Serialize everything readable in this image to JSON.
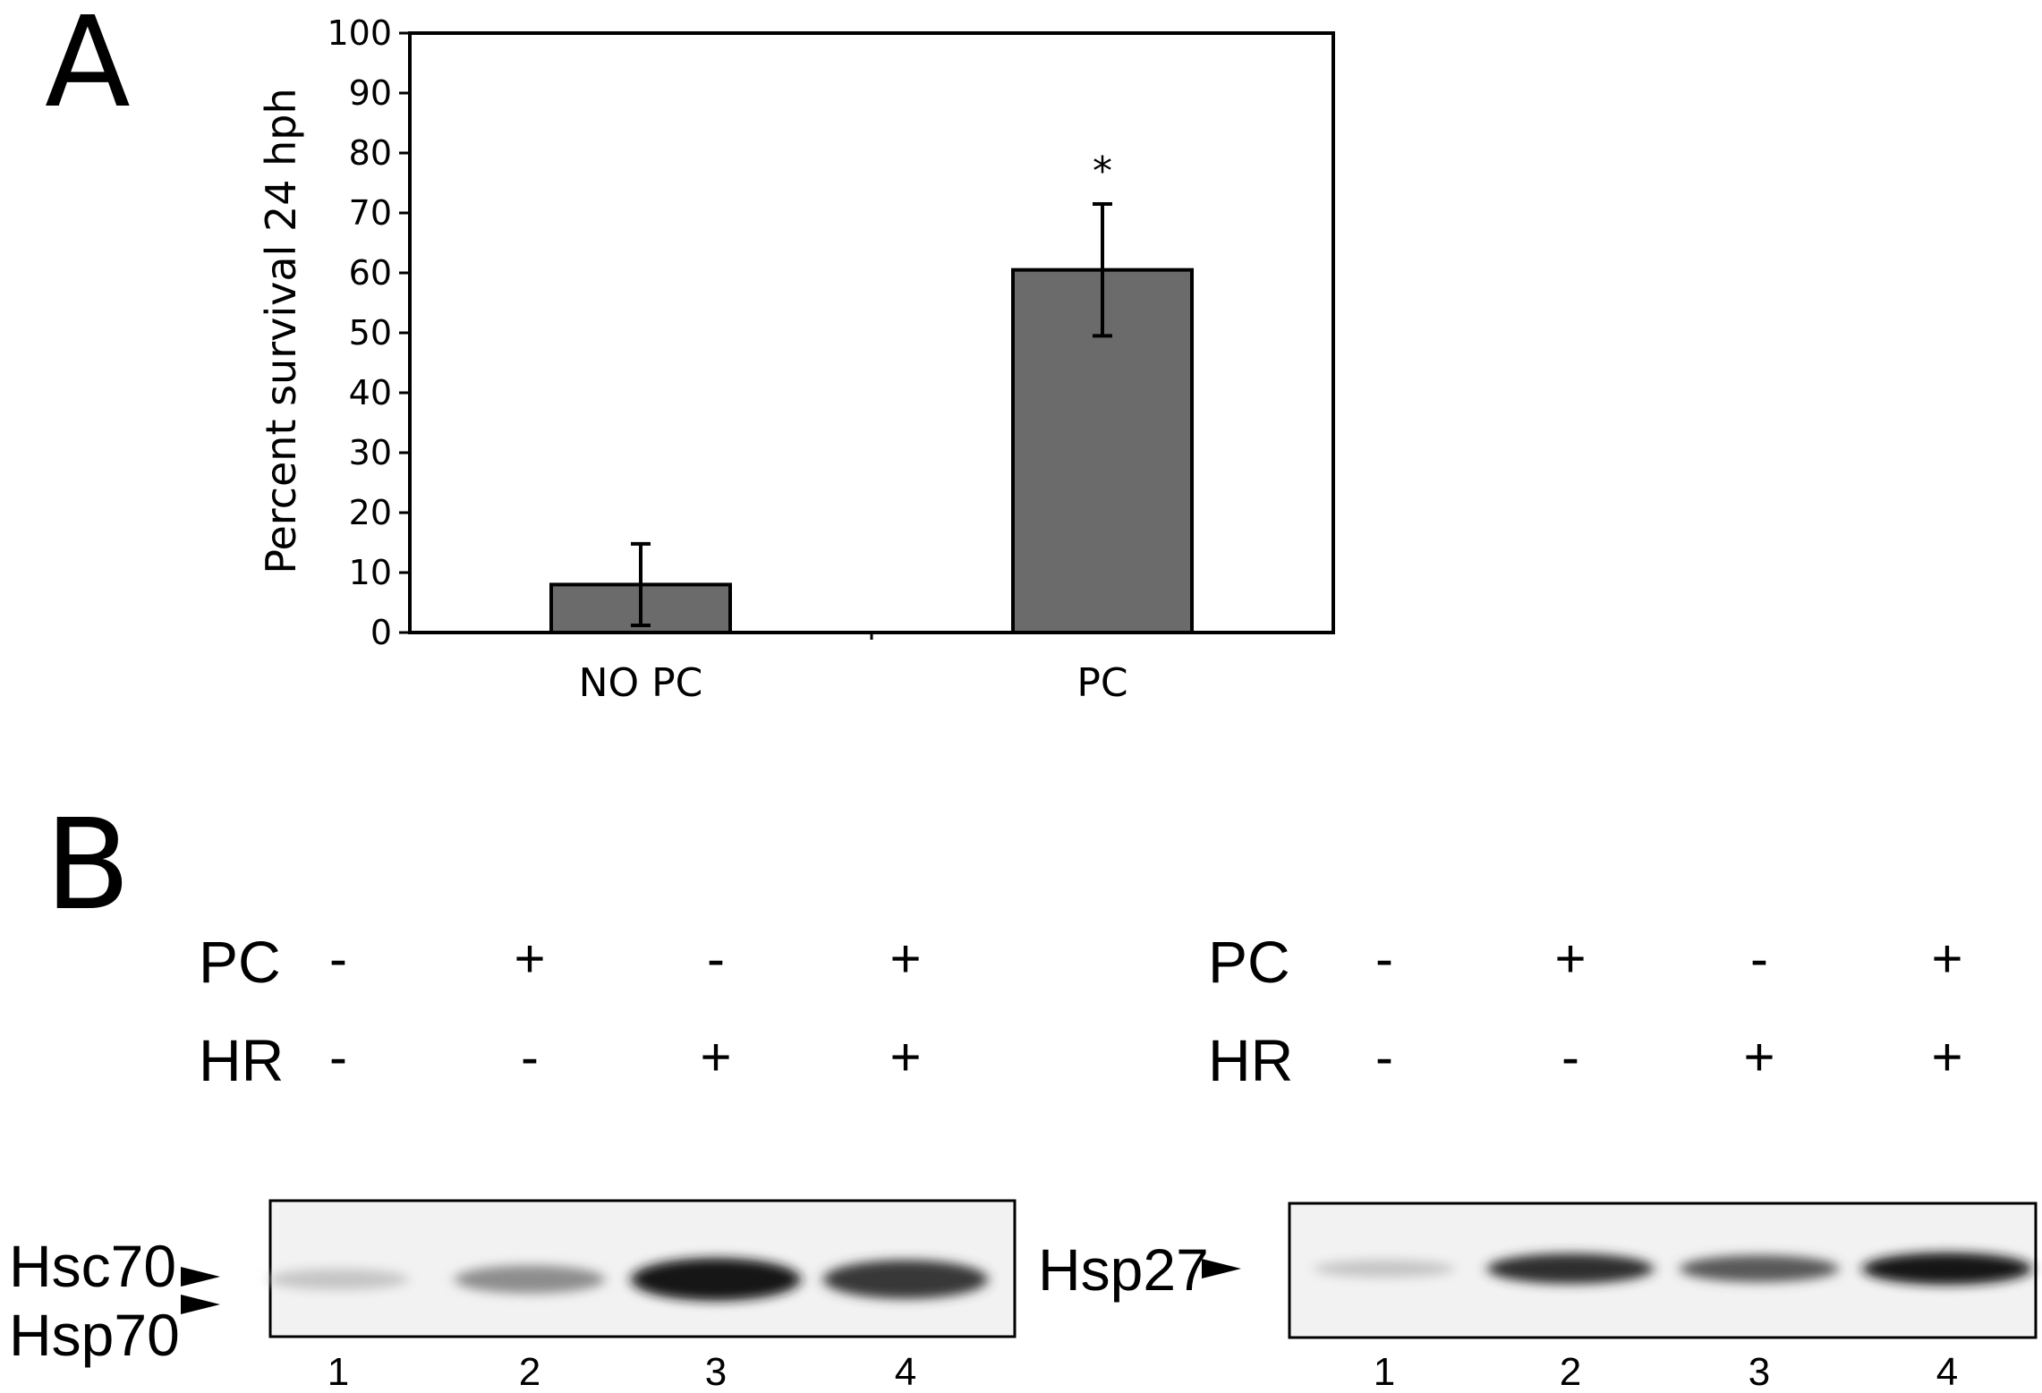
{
  "panel_a": {
    "label": "A"
  },
  "panel_b": {
    "label": "B"
  },
  "chart_data": {
    "type": "bar",
    "title": "",
    "xlabel": "",
    "ylabel": "Percent survival 24 hph",
    "categories": [
      "NO PC",
      "PC"
    ],
    "values": [
      8,
      60.5
    ],
    "errors": [
      6.8,
      11
    ],
    "ylim": [
      0,
      100
    ],
    "yticks": [
      0,
      10,
      20,
      30,
      40,
      50,
      60,
      70,
      80,
      90,
      100
    ],
    "annotations": [
      {
        "category": "PC",
        "text": "*"
      }
    ],
    "bar_color": "#6b6b6b",
    "grid": false
  },
  "blots": [
    {
      "id": "hsc70-hsp70",
      "proteins": [
        "Hsc70",
        "Hsp70"
      ],
      "rows": [
        {
          "label": "PC",
          "signs": [
            "-",
            "+",
            "-",
            "+"
          ]
        },
        {
          "label": "HR",
          "signs": [
            "-",
            "-",
            "+",
            "+"
          ]
        }
      ],
      "lanes": [
        "1",
        "2",
        "3",
        "4"
      ],
      "band_intensity": [
        0.18,
        0.45,
        1.0,
        0.85
      ]
    },
    {
      "id": "hsp27",
      "proteins": [
        "Hsp27"
      ],
      "rows": [
        {
          "label": "PC",
          "signs": [
            "-",
            "+",
            "-",
            "+"
          ]
        },
        {
          "label": "HR",
          "signs": [
            "-",
            "-",
            "+",
            "+"
          ]
        }
      ],
      "lanes": [
        "1",
        "2",
        "3",
        "4"
      ],
      "band_intensity": [
        0.18,
        0.9,
        0.7,
        1.0
      ]
    }
  ]
}
